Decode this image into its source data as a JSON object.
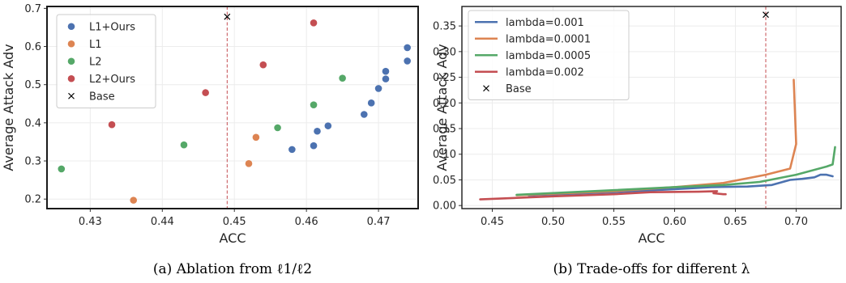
{
  "chart_data": [
    {
      "type": "scatter",
      "caption": "(a) Ablation from ℓ1/ℓ2",
      "xlabel": "ACC",
      "ylabel": "Average Attack Adv",
      "xlim": [
        0.424,
        0.4755
      ],
      "ylim": [
        0.175,
        0.705
      ],
      "xticks": [
        0.43,
        0.44,
        0.45,
        0.46,
        0.47
      ],
      "yticks": [
        0.2,
        0.3,
        0.4,
        0.5,
        0.6,
        0.7
      ],
      "grid": true,
      "legend_position": "top-left",
      "series": [
        {
          "name": "L1+Ours",
          "color": "#4c72b0",
          "marker": "circle",
          "points": [
            [
              0.458,
              0.33
            ],
            [
              0.461,
              0.34
            ],
            [
              0.4615,
              0.378
            ],
            [
              0.463,
              0.392
            ],
            [
              0.468,
              0.422
            ],
            [
              0.469,
              0.452
            ],
            [
              0.47,
              0.49
            ],
            [
              0.471,
              0.515
            ],
            [
              0.471,
              0.535
            ],
            [
              0.474,
              0.562
            ],
            [
              0.474,
              0.597
            ]
          ]
        },
        {
          "name": "L1",
          "color": "#dd8452",
          "marker": "circle",
          "points": [
            [
              0.436,
              0.197
            ],
            [
              0.452,
              0.293
            ],
            [
              0.453,
              0.362
            ]
          ]
        },
        {
          "name": "L2",
          "color": "#55a868",
          "marker": "circle",
          "points": [
            [
              0.426,
              0.279
            ],
            [
              0.443,
              0.342
            ],
            [
              0.456,
              0.387
            ],
            [
              0.461,
              0.447
            ],
            [
              0.465,
              0.517
            ]
          ]
        },
        {
          "name": "L2+Ours",
          "color": "#c44e52",
          "marker": "circle",
          "points": [
            [
              0.433,
              0.395
            ],
            [
              0.446,
              0.479
            ],
            [
              0.454,
              0.552
            ],
            [
              0.461,
              0.662
            ]
          ]
        },
        {
          "name": "Base",
          "color": "#000000",
          "marker": "x",
          "points": [
            [
              0.449,
              0.678
            ]
          ]
        }
      ],
      "vline": {
        "x": 0.449,
        "color": "#c44e52"
      }
    },
    {
      "type": "line",
      "caption": "(b) Trade-offs for different λ",
      "xlabel": "ACC",
      "ylabel": "Average Attack Adv",
      "xlim": [
        0.425,
        0.737
      ],
      "ylim": [
        -0.006,
        0.388
      ],
      "xticks": [
        0.45,
        0.5,
        0.55,
        0.6,
        0.65,
        0.7
      ],
      "yticks": [
        0.0,
        0.05,
        0.1,
        0.15,
        0.2,
        0.25,
        0.3,
        0.35
      ],
      "grid": true,
      "legend_position": "top-left",
      "series": [
        {
          "name": "lambda=0.001",
          "color": "#4c72b0",
          "marker": "line",
          "points": [
            [
              0.48,
              0.02
            ],
            [
              0.55,
              0.026
            ],
            [
              0.6,
              0.032
            ],
            [
              0.63,
              0.036
            ],
            [
              0.66,
              0.037
            ],
            [
              0.68,
              0.04
            ],
            [
              0.695,
              0.05
            ],
            [
              0.705,
              0.052
            ],
            [
              0.715,
              0.055
            ],
            [
              0.72,
              0.06
            ],
            [
              0.725,
              0.06
            ],
            [
              0.73,
              0.057
            ]
          ]
        },
        {
          "name": "lambda=0.0001",
          "color": "#dd8452",
          "marker": "line",
          "points": [
            [
              0.47,
              0.02
            ],
            [
              0.55,
              0.028
            ],
            [
              0.6,
              0.036
            ],
            [
              0.64,
              0.044
            ],
            [
              0.675,
              0.06
            ],
            [
              0.695,
              0.072
            ],
            [
              0.7,
              0.12
            ],
            [
              0.698,
              0.245
            ]
          ]
        },
        {
          "name": "lambda=0.0005",
          "color": "#55a868",
          "marker": "line",
          "points": [
            [
              0.47,
              0.021
            ],
            [
              0.55,
              0.03
            ],
            [
              0.6,
              0.036
            ],
            [
              0.64,
              0.04
            ],
            [
              0.67,
              0.046
            ],
            [
              0.7,
              0.06
            ],
            [
              0.725,
              0.076
            ],
            [
              0.73,
              0.08
            ],
            [
              0.732,
              0.114
            ]
          ]
        },
        {
          "name": "lambda=0.002",
          "color": "#c44e52",
          "marker": "line",
          "points": [
            [
              0.44,
              0.012
            ],
            [
              0.5,
              0.018
            ],
            [
              0.55,
              0.022
            ],
            [
              0.58,
              0.026
            ],
            [
              0.62,
              0.027
            ],
            [
              0.635,
              0.028
            ],
            [
              0.632,
              0.024
            ],
            [
              0.64,
              0.022
            ],
            [
              0.642,
              0.022
            ]
          ]
        },
        {
          "name": "Base",
          "color": "#000000",
          "marker": "x",
          "points": [
            [
              0.675,
              0.372
            ]
          ]
        }
      ],
      "vline": {
        "x": 0.675,
        "color": "#c44e52"
      }
    }
  ]
}
